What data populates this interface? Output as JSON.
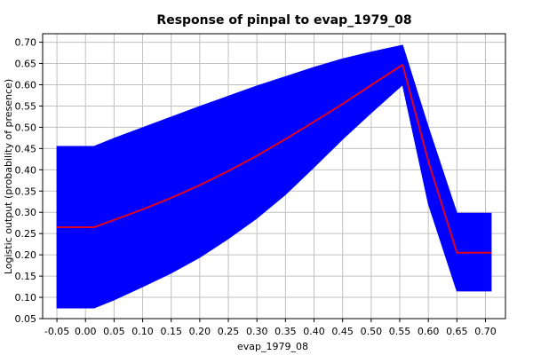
{
  "chart_data": {
    "type": "area",
    "title": "Response of pinpal to evap_1979_08",
    "xlabel": "evap_1979_08",
    "ylabel": "Logistic output (probability of presence)",
    "xlim": [
      -0.075,
      0.735
    ],
    "ylim": [
      0.05,
      0.72
    ],
    "x_ticks": [
      "-0.05",
      "0.00",
      "0.05",
      "0.10",
      "0.15",
      "0.20",
      "0.25",
      "0.30",
      "0.35",
      "0.40",
      "0.45",
      "0.50",
      "0.55",
      "0.60",
      "0.65",
      "0.70"
    ],
    "y_ticks": [
      "0.05",
      "0.10",
      "0.15",
      "0.20",
      "0.25",
      "0.30",
      "0.35",
      "0.40",
      "0.45",
      "0.50",
      "0.55",
      "0.60",
      "0.65",
      "0.70"
    ],
    "grid": true,
    "series": [
      {
        "role": "mean",
        "color": "#e0001f",
        "x": [
          -0.05,
          0.015,
          0.05,
          0.1,
          0.15,
          0.2,
          0.25,
          0.3,
          0.35,
          0.4,
          0.45,
          0.5,
          0.555,
          0.6,
          0.65,
          0.71
        ],
        "y": [
          0.265,
          0.265,
          0.282,
          0.307,
          0.334,
          0.364,
          0.397,
          0.433,
          0.472,
          0.513,
          0.555,
          0.599,
          0.647,
          0.42,
          0.205,
          0.205
        ]
      },
      {
        "role": "band",
        "color": "#0000ff",
        "x": [
          -0.05,
          0.015,
          0.05,
          0.1,
          0.15,
          0.2,
          0.25,
          0.3,
          0.35,
          0.4,
          0.45,
          0.5,
          0.555,
          0.6,
          0.65,
          0.71
        ],
        "upper": [
          0.455,
          0.455,
          0.474,
          0.499,
          0.524,
          0.549,
          0.573,
          0.597,
          0.619,
          0.641,
          0.661,
          0.677,
          0.693,
          0.5,
          0.298,
          0.298
        ],
        "lower": [
          0.075,
          0.075,
          0.094,
          0.125,
          0.157,
          0.194,
          0.238,
          0.286,
          0.342,
          0.406,
          0.472,
          0.534,
          0.6,
          0.32,
          0.115,
          0.115
        ]
      }
    ]
  }
}
